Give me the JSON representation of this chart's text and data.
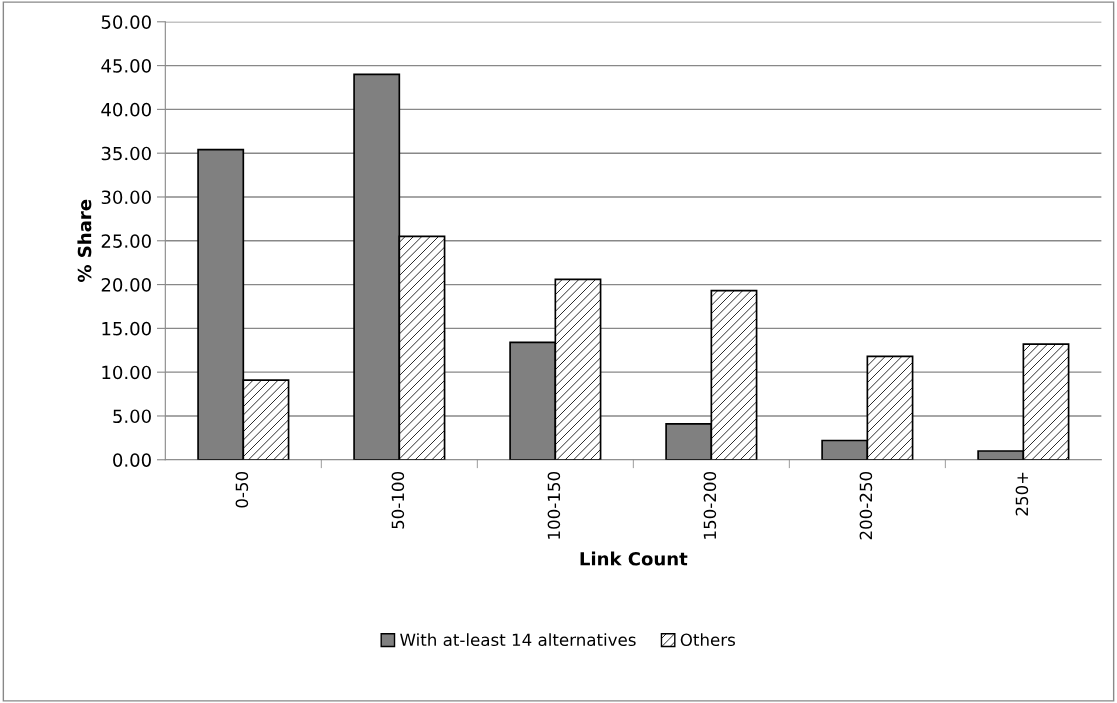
{
  "chart_data": {
    "type": "bar",
    "xlabel": "Link Count",
    "ylabel": "% Share",
    "categories": [
      "0-50",
      "50-100",
      "100-150",
      "150-200",
      "200-250",
      "250+"
    ],
    "series": [
      {
        "name": "With at-least 14 alternatives",
        "color": "#808080",
        "values": [
          35.4,
          44.0,
          13.4,
          4.1,
          2.2,
          1.0
        ]
      },
      {
        "name": "Others",
        "color": "#000000",
        "values": [
          9.1,
          25.5,
          20.6,
          19.3,
          11.8,
          13.2
        ]
      }
    ],
    "ylim": [
      0,
      50
    ],
    "yticks": [
      {
        "value": 0,
        "label": "0.00"
      },
      {
        "value": 5,
        "label": "5.00"
      },
      {
        "value": 10,
        "label": "10.00"
      },
      {
        "value": 15,
        "label": "15.00"
      },
      {
        "value": 20,
        "label": "20.00"
      },
      {
        "value": 25,
        "label": "25.00"
      },
      {
        "value": 30,
        "label": "30.00"
      },
      {
        "value": 35,
        "label": "35.00"
      },
      {
        "value": 40,
        "label": "40.00"
      },
      {
        "value": 45,
        "label": "45.00"
      },
      {
        "value": 50,
        "label": "50.00"
      }
    ],
    "grid": "y",
    "legend": "bottom"
  }
}
